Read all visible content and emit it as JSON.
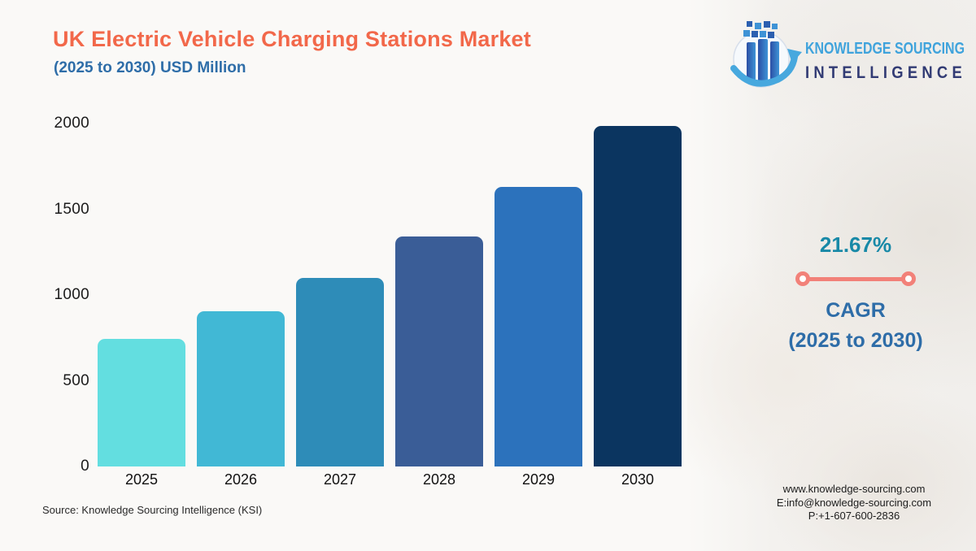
{
  "header": {
    "title": "UK Electric Vehicle Charging Stations Market",
    "subtitle": "(2025 to 2030) USD Million"
  },
  "logo": {
    "icon": "bar-chart-globe-arrow-icon",
    "line1": "KNOWLEDGE SOURCING",
    "line2": "INTELLIGENCE"
  },
  "chart_data": {
    "type": "bar",
    "title": "UK Electric Vehicle Charging Stations Market (2025 to 2030) USD Million",
    "categories": [
      "2025",
      "2026",
      "2027",
      "2028",
      "2029",
      "2030"
    ],
    "values": [
      745,
      905,
      1100,
      1340,
      1630,
      1985
    ],
    "unit": "USD Million",
    "xlabel": "",
    "ylabel": "",
    "ylim": [
      0,
      2000
    ],
    "yticks": [
      0,
      500,
      1000,
      1500,
      2000
    ],
    "grid": false,
    "legend": false,
    "bar_colors": [
      "#63DEE0",
      "#41B8D5",
      "#2E8CB8",
      "#3A5D97",
      "#2C72BC",
      "#0B3560"
    ]
  },
  "cagr": {
    "value": "21.67%",
    "label1": "CAGR",
    "label2": "(2025 to 2030)"
  },
  "source": {
    "text": "Source: Knowledge Sourcing Intelligence (KSI)"
  },
  "contact": {
    "website": "www.knowledge-sourcing.com",
    "email": "E:info@knowledge-sourcing.com",
    "phone": "P:+1-607-600-2836"
  },
  "colors": {
    "title": "#F2684A",
    "subtitle_blue": "#2E6DA8",
    "cagr_teal": "#1889A7",
    "cagr_coral": "#F28179",
    "logo_light_blue": "#3FA3DC",
    "logo_dark_indigo": "#323B74",
    "background": "#FAF9F7"
  }
}
